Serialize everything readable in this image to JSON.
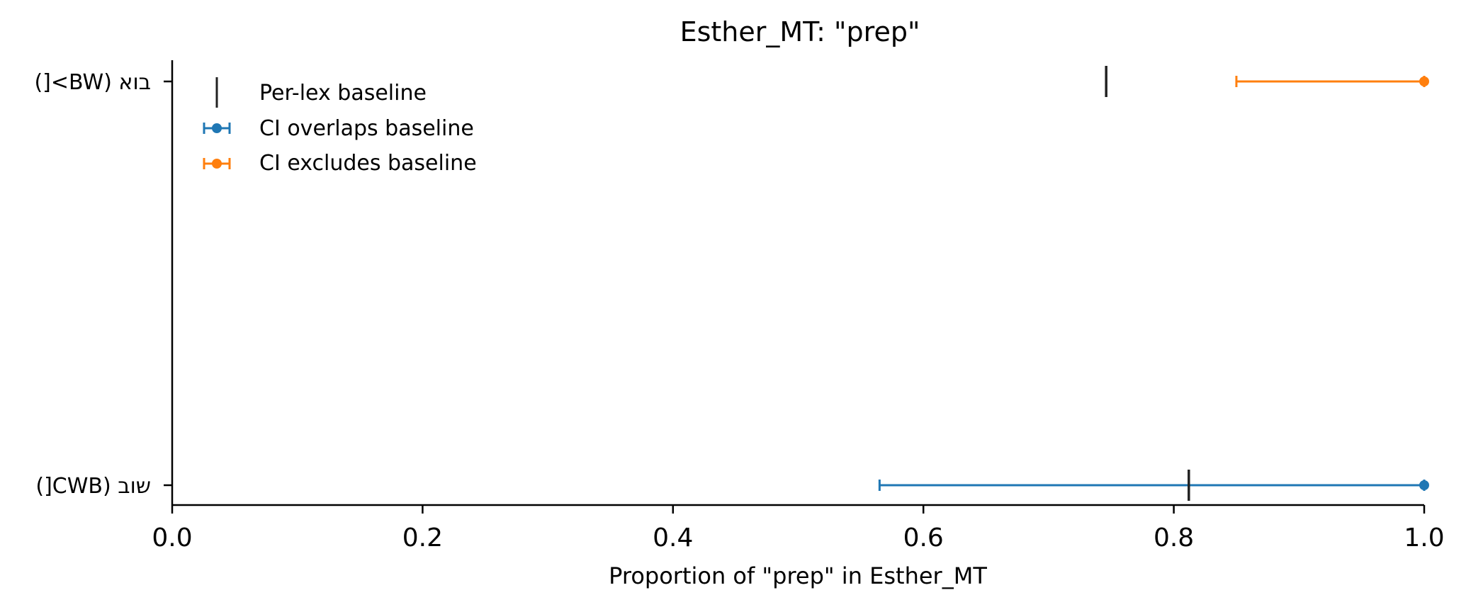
{
  "chart_data": {
    "type": "errorbar",
    "title": "Esther_MT: \"prep\"",
    "xlabel": "Proportion of \"prep\" in Esther_MT",
    "ylabel": "",
    "xlim": [
      0.0,
      1.0
    ],
    "xticks": [
      "0.0",
      "0.2",
      "0.4",
      "0.6",
      "0.8",
      "1.0"
    ],
    "grid": false,
    "legend_position": "upper-left",
    "legend": {
      "baseline": "Per-lex baseline",
      "overlap": "CI overlaps baseline",
      "exclude": "CI excludes baseline"
    },
    "colors": {
      "overlap": "#1f77b4",
      "exclude": "#ff7f0e",
      "baseline": "#222222"
    },
    "categories": [
      "בוא (BW>[)",
      "שוב (CWB[)"
    ],
    "points": [
      {
        "category": "בוא (BW>[)",
        "estimate": 1.0,
        "ci": [
          0.85,
          1.0
        ],
        "baseline": 0.746,
        "status": "exclude"
      },
      {
        "category": "שוב (CWB[)",
        "estimate": 1.0,
        "ci": [
          0.565,
          1.0
        ],
        "baseline": 0.812,
        "status": "overlap"
      }
    ]
  }
}
